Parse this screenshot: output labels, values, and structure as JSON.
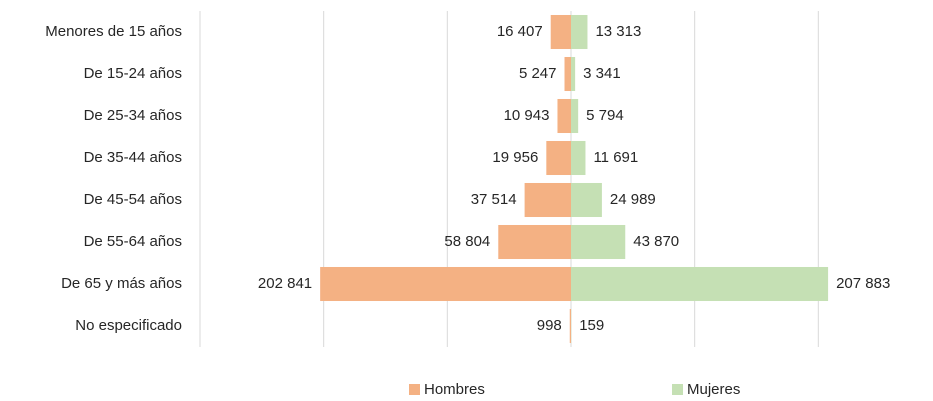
{
  "chart_data": {
    "type": "pyramid",
    "categories": [
      "Menores de 15 años",
      "De 15-24 años",
      "De 25-34 años",
      "De 35-44 años",
      "De 45-54 años",
      "De 55-64 años",
      "De 65 y más años",
      "No especificado"
    ],
    "series": [
      {
        "name": "Hombres",
        "color": "#f4b183",
        "values": [
          16407,
          5247,
          10943,
          19956,
          37514,
          58804,
          202841,
          998
        ],
        "value_labels": [
          "16 407",
          "5 247",
          "10 943",
          "19 956",
          "37 514",
          "58 804",
          "202 841",
          "998"
        ]
      },
      {
        "name": "Mujeres",
        "color": "#c5e0b4",
        "values": [
          13313,
          3341,
          5794,
          11691,
          24989,
          43870,
          207883,
          159
        ],
        "value_labels": [
          "13 313",
          "3 341",
          "5 794",
          "11 691",
          "24 989",
          "43 870",
          "207 883",
          "159"
        ]
      }
    ],
    "xlim": [
      -300000,
      300000
    ],
    "xticks": [
      -300000,
      -200000,
      -100000,
      0,
      100000,
      200000
    ],
    "grid": true,
    "legend": "bottom"
  }
}
